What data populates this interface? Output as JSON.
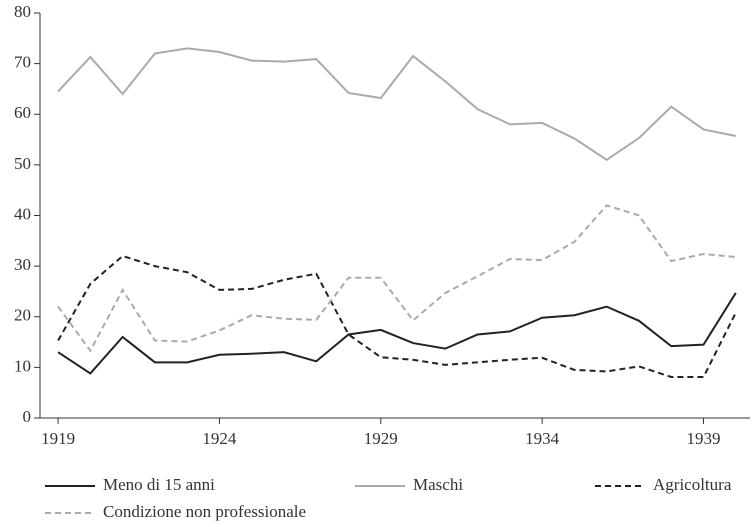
{
  "chart_data": {
    "type": "line",
    "x": [
      1919,
      1920,
      1921,
      1922,
      1923,
      1924,
      1925,
      1926,
      1927,
      1928,
      1929,
      1930,
      1931,
      1932,
      1933,
      1934,
      1935,
      1936,
      1937,
      1938,
      1939,
      1940
    ],
    "series": [
      {
        "name": "Meno di 15 anni",
        "color": "#222222",
        "dash": "none",
        "values": [
          13,
          8.8,
          16,
          11,
          11,
          12.5,
          12.7,
          13,
          11.2,
          16.5,
          17.4,
          14.8,
          13.7,
          16.5,
          17.1,
          19.8,
          20.3,
          22,
          19.2,
          14.2,
          14.5,
          24.7
        ]
      },
      {
        "name": "Maschi",
        "color": "#aaaaaa",
        "dash": "none",
        "values": [
          64.5,
          71.3,
          64,
          72,
          73,
          72.3,
          70.6,
          70.4,
          70.9,
          64.2,
          63.2,
          71.5,
          66.5,
          61,
          58,
          58.3,
          55.2,
          51,
          55.3,
          61.5,
          57,
          55.7
        ]
      },
      {
        "name": "Agricoltura",
        "color": "#222222",
        "dash": "6,4",
        "values": [
          15.3,
          26.5,
          32,
          30,
          28.8,
          25.3,
          25.5,
          27.3,
          28.5,
          16.5,
          12,
          11.5,
          10.5,
          11,
          11.5,
          11.9,
          9.5,
          9.2,
          10.2,
          8.1,
          8.1,
          20.8
        ]
      },
      {
        "name": "Condizione non professionale",
        "color": "#aaaaaa",
        "dash": "6,4",
        "values": [
          22,
          13.3,
          25.3,
          15.3,
          15.1,
          17.3,
          20.3,
          19.6,
          19.4,
          27.7,
          27.7,
          19.3,
          24.7,
          28,
          31.4,
          31.2,
          34.8,
          42,
          40,
          31,
          32.4,
          31.8
        ]
      }
    ],
    "xlim": [
      1918.44,
      1940.44
    ],
    "xticks": [
      1919,
      1924,
      1929,
      1934,
      1939
    ],
    "ylim": [
      0,
      80
    ],
    "yticks": [
      0,
      10,
      20,
      30,
      40,
      50,
      60,
      70,
      80
    ]
  }
}
